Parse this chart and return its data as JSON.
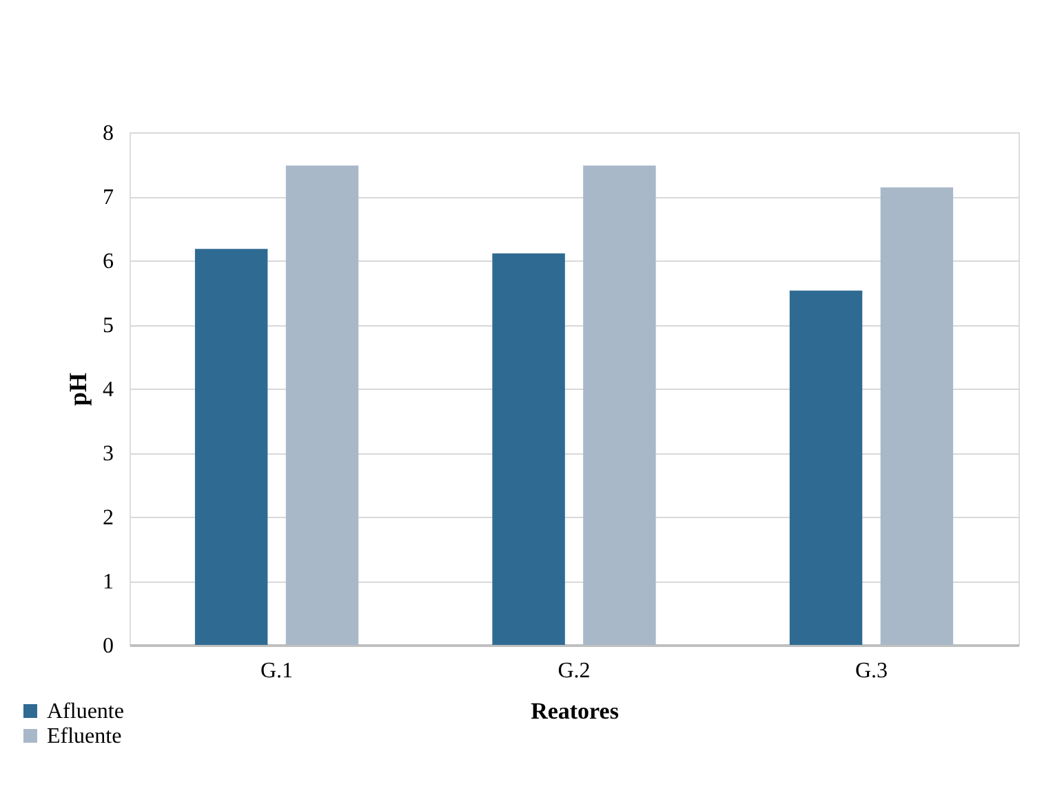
{
  "chart_data": {
    "type": "bar",
    "xlabel": "Reatores",
    "ylabel": "pH",
    "categories": [
      "G.1",
      "G.2",
      "G.3"
    ],
    "series": [
      {
        "name": "Afluente",
        "color": "#2f6a93",
        "values": [
          6.18,
          6.11,
          5.53
        ]
      },
      {
        "name": "Efluente",
        "color": "#a9b8c9",
        "values": [
          7.48,
          7.48,
          7.14
        ]
      }
    ],
    "ylim": [
      0,
      8
    ],
    "yticks": [
      0,
      1,
      2,
      3,
      4,
      5,
      6,
      7,
      8
    ],
    "grid": "y",
    "legend": "bottom left"
  }
}
